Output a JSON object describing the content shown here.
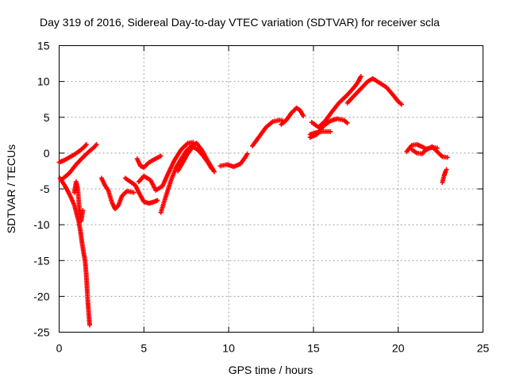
{
  "chart_data": {
    "type": "scatter",
    "title": "Day 319 of 2016, Sidereal Day-to-day VTEC variation (SDTVAR) for receiver scla",
    "xlabel": "GPS time / hours",
    "ylabel": "SDTVAR / TECUs",
    "xlim": [
      0,
      25
    ],
    "ylim": [
      -25,
      15
    ],
    "xticks": [
      "0",
      "5",
      "10",
      "15",
      "20",
      "25"
    ],
    "yticks": [
      "15",
      "10",
      "5",
      "0",
      "-5",
      "-10",
      "-15",
      "-20",
      "-25"
    ],
    "grid": true,
    "marker": "+",
    "color": "#ff0000",
    "series": [
      {
        "name": "SDTVAR",
        "segments": [
          [
            [
              0.0,
              -1.3
            ],
            [
              0.3,
              -1.0
            ],
            [
              0.6,
              -0.6
            ],
            [
              0.9,
              -0.2
            ],
            [
              1.2,
              0.3
            ],
            [
              1.5,
              0.9
            ],
            [
              1.6,
              1.2
            ]
          ],
          [
            [
              0.05,
              -3.5
            ],
            [
              0.4,
              -4.8
            ],
            [
              0.7,
              -6.2
            ],
            [
              0.9,
              -7.3
            ],
            [
              1.0,
              -8.2
            ],
            [
              1.15,
              -9.5
            ],
            [
              1.25,
              -10.8
            ],
            [
              1.35,
              -12.5
            ],
            [
              1.45,
              -14.0
            ],
            [
              1.5,
              -14.6
            ],
            [
              1.55,
              -15.5
            ],
            [
              1.6,
              -17.0
            ],
            [
              1.65,
              -19.0
            ],
            [
              1.7,
              -21.0
            ],
            [
              1.75,
              -22.5
            ],
            [
              1.8,
              -24.0
            ]
          ],
          [
            [
              0.1,
              -3.8
            ],
            [
              0.6,
              -2.8
            ],
            [
              1.0,
              -1.6
            ],
            [
              1.4,
              -0.6
            ],
            [
              1.8,
              0.3
            ],
            [
              2.1,
              0.9
            ],
            [
              2.2,
              1.2
            ]
          ],
          [
            [
              0.9,
              -5.5
            ],
            [
              1.0,
              -4.0
            ],
            [
              1.1,
              -5.0
            ],
            [
              1.2,
              -8.0
            ],
            [
              1.3,
              -9.5
            ],
            [
              1.4,
              -8.0
            ]
          ],
          [
            [
              2.5,
              -3.5
            ],
            [
              2.7,
              -4.5
            ],
            [
              2.9,
              -5.2
            ],
            [
              3.1,
              -6.8
            ],
            [
              3.3,
              -7.8
            ],
            [
              3.5,
              -7.3
            ],
            [
              3.7,
              -6.0
            ],
            [
              4.0,
              -5.3
            ],
            [
              4.4,
              -5.5
            ]
          ],
          [
            [
              3.9,
              -3.5
            ],
            [
              4.2,
              -4.0
            ],
            [
              4.5,
              -4.5
            ],
            [
              4.7,
              -5.5
            ],
            [
              5.0,
              -6.8
            ],
            [
              5.3,
              -7.0
            ],
            [
              5.6,
              -6.8
            ],
            [
              5.8,
              -6.6
            ]
          ],
          [
            [
              4.6,
              -0.8
            ],
            [
              4.8,
              -1.8
            ],
            [
              5.0,
              -2.0
            ],
            [
              5.3,
              -1.3
            ],
            [
              5.6,
              -0.9
            ],
            [
              6.0,
              -0.4
            ]
          ],
          [
            [
              4.7,
              -4.0
            ],
            [
              5.0,
              -3.2
            ],
            [
              5.4,
              -3.8
            ],
            [
              5.7,
              -5.2
            ],
            [
              6.1,
              -4.6
            ],
            [
              6.4,
              -3.0
            ],
            [
              6.8,
              -1.0
            ],
            [
              7.2,
              0.5
            ],
            [
              7.6,
              1.4
            ],
            [
              7.9,
              1.5
            ]
          ],
          [
            [
              6.0,
              -8.3
            ],
            [
              6.3,
              -6.0
            ],
            [
              6.6,
              -3.8
            ],
            [
              6.9,
              -2.0
            ],
            [
              7.2,
              -0.8
            ],
            [
              7.5,
              0.3
            ],
            [
              7.8,
              1.0
            ],
            [
              8.1,
              1.4
            ],
            [
              8.4,
              0.5
            ],
            [
              8.7,
              -0.8
            ],
            [
              9.0,
              -2.0
            ],
            [
              9.15,
              -2.6
            ]
          ],
          [
            [
              7.0,
              -2.5
            ],
            [
              7.3,
              -1.3
            ],
            [
              7.6,
              0.0
            ],
            [
              7.9,
              0.9
            ],
            [
              8.2,
              0.4
            ],
            [
              8.5,
              -0.4
            ],
            [
              8.8,
              -1.4
            ],
            [
              9.0,
              -2.2
            ]
          ],
          [
            [
              9.5,
              -1.8
            ],
            [
              9.9,
              -1.6
            ],
            [
              10.3,
              -1.9
            ],
            [
              10.7,
              -1.5
            ],
            [
              11.0,
              -0.5
            ],
            [
              11.1,
              -0.1
            ]
          ],
          [
            [
              11.4,
              1.0
            ],
            [
              11.8,
              2.3
            ],
            [
              12.2,
              3.6
            ],
            [
              12.6,
              4.4
            ],
            [
              13.0,
              4.6
            ],
            [
              13.2,
              4.5
            ]
          ],
          [
            [
              13.1,
              4.0
            ],
            [
              13.4,
              4.6
            ],
            [
              13.7,
              5.6
            ],
            [
              14.0,
              6.3
            ],
            [
              14.2,
              6.0
            ],
            [
              14.4,
              5.2
            ]
          ],
          [
            [
              14.8,
              2.2
            ],
            [
              15.2,
              2.6
            ],
            [
              15.6,
              3.8
            ],
            [
              16.0,
              4.5
            ],
            [
              16.4,
              4.8
            ],
            [
              16.8,
              4.6
            ],
            [
              17.0,
              4.2
            ]
          ],
          [
            [
              14.9,
              4.3
            ],
            [
              15.3,
              3.6
            ],
            [
              15.7,
              4.5
            ],
            [
              16.1,
              5.8
            ],
            [
              16.5,
              7.0
            ],
            [
              16.9,
              7.9
            ],
            [
              17.3,
              8.9
            ],
            [
              17.6,
              9.8
            ],
            [
              17.8,
              10.7
            ]
          ],
          [
            [
              14.8,
              2.6
            ],
            [
              15.2,
              2.9
            ],
            [
              15.6,
              3.0
            ],
            [
              16.0,
              3.0
            ]
          ],
          [
            [
              17.0,
              7.0
            ],
            [
              17.4,
              8.0
            ],
            [
              17.8,
              9.0
            ],
            [
              18.2,
              10.0
            ],
            [
              18.5,
              10.4
            ],
            [
              18.9,
              9.8
            ],
            [
              19.3,
              9.2
            ],
            [
              19.7,
              8.1
            ],
            [
              20.0,
              7.2
            ],
            [
              20.2,
              6.8
            ]
          ],
          [
            [
              20.5,
              0.2
            ],
            [
              20.8,
              1.1
            ],
            [
              21.1,
              1.2
            ],
            [
              21.4,
              0.9
            ],
            [
              21.7,
              0.5
            ],
            [
              22.0,
              0.9
            ],
            [
              22.3,
              0.2
            ],
            [
              22.6,
              -0.5
            ],
            [
              22.9,
              -0.6
            ]
          ],
          [
            [
              20.8,
              0.5
            ],
            [
              21.1,
              0.0
            ],
            [
              21.4,
              -0.1
            ],
            [
              21.7,
              0.6
            ],
            [
              22.0,
              0.8
            ],
            [
              22.3,
              0.7
            ]
          ],
          [
            [
              22.6,
              -4.1
            ],
            [
              22.7,
              -3.2
            ],
            [
              22.8,
              -2.5
            ],
            [
              22.85,
              -2.3
            ]
          ]
        ]
      }
    ]
  }
}
